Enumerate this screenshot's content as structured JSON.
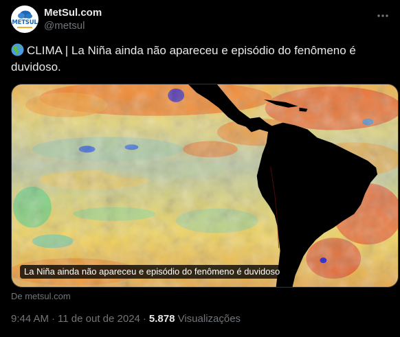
{
  "author": {
    "display_name": "MetSul.com",
    "handle": "@metsul",
    "avatar_text": "METSUL",
    "avatar_colors": {
      "brand_blue": "#1b67b2",
      "accent_yellow": "#e8b32b"
    }
  },
  "post": {
    "emoji_icon": "globe-americas-icon",
    "text": "CLIMA | La Niña ainda não apareceu e episódio do fenômeno é duvidoso."
  },
  "media": {
    "caption": "La Niña ainda não apareceu e episódio do fenômeno é duvidoso"
  },
  "card": {
    "source": "De metsul.com"
  },
  "meta": {
    "time": "9:44 AM",
    "separator_1": "·",
    "date": "11 de out de 2024",
    "separator_2": "·",
    "views_count": "5.878",
    "views_label": "Visualizações"
  },
  "colors": {
    "background": "#000000",
    "text_primary": "#e7e9ea",
    "text_secondary": "#71767b",
    "border": "#2f3336"
  }
}
